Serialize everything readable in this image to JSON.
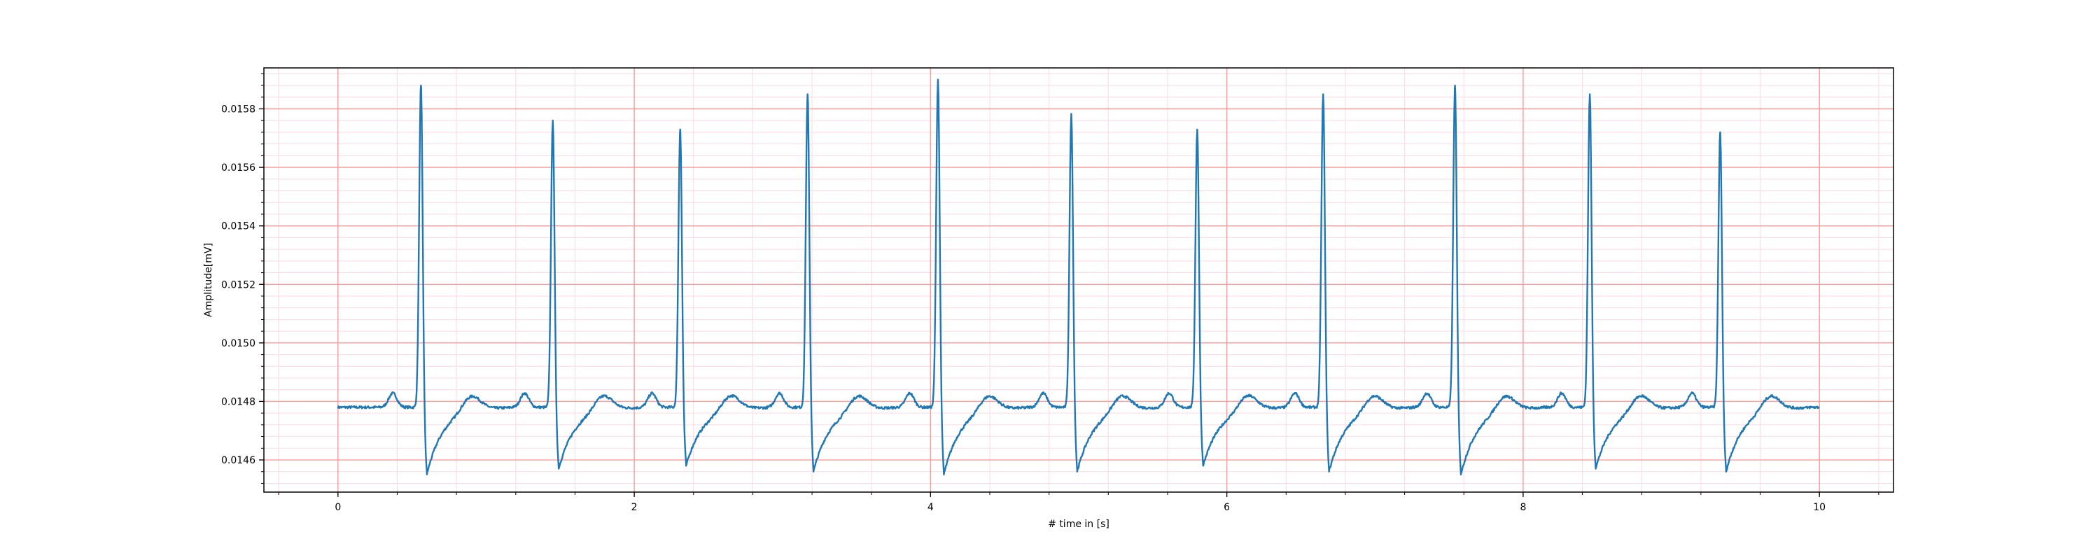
{
  "chart_data": {
    "type": "line",
    "title": "",
    "xlabel": "# time in [s]",
    "ylabel": "Amplitude[mV]",
    "xlim": [
      -0.5,
      10.5
    ],
    "ylim": [
      0.01449,
      0.01594
    ],
    "x_ticks": [
      0,
      2,
      4,
      6,
      8,
      10
    ],
    "x_tick_labels": [
      "0",
      "2",
      "4",
      "6",
      "8",
      "10"
    ],
    "y_ticks": [
      0.0146,
      0.0148,
      0.015,
      0.0152,
      0.0154,
      0.0156,
      0.0158
    ],
    "y_tick_labels": [
      "0.0146",
      "0.0148",
      "0.0150",
      "0.0152",
      "0.0154",
      "0.0156",
      "0.0158"
    ],
    "grid": {
      "major": true,
      "minor": true,
      "major_color": "#ff9a9a",
      "minor_color": "#ffd9e2"
    },
    "legend": "none",
    "series": [
      {
        "name": "",
        "color": "#1f77b4",
        "baseline": 0.01478,
        "beats": [
          {
            "t": 0.56,
            "peak": 0.01588,
            "trough": 0.01455
          },
          {
            "t": 1.45,
            "peak": 0.01576,
            "trough": 0.01457
          },
          {
            "t": 2.31,
            "peak": 0.01573,
            "trough": 0.01458
          },
          {
            "t": 3.17,
            "peak": 0.01585,
            "trough": 0.01456
          },
          {
            "t": 4.05,
            "peak": 0.0159,
            "trough": 0.01455
          },
          {
            "t": 4.95,
            "peak": 0.01578,
            "trough": 0.01456
          },
          {
            "t": 5.8,
            "peak": 0.01573,
            "trough": 0.01458
          },
          {
            "t": 6.65,
            "peak": 0.01585,
            "trough": 0.01456
          },
          {
            "t": 7.54,
            "peak": 0.01588,
            "trough": 0.01455
          },
          {
            "t": 8.45,
            "peak": 0.01585,
            "trough": 0.01457
          },
          {
            "t": 9.33,
            "peak": 0.01572,
            "trough": 0.01456
          }
        ],
        "x_start": 0,
        "x_end": 10
      }
    ]
  }
}
